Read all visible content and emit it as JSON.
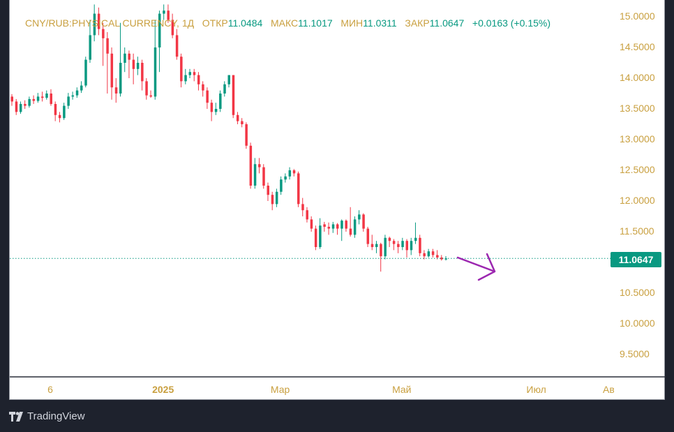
{
  "header": {
    "symbol": "CNY/RUB:PHYSICAL CURRENCY, 1Д",
    "open_label": "ОТКР",
    "open": "11.0484",
    "high_label": "МАКС",
    "high": "11.1017",
    "low_label": "МИН",
    "low": "11.0311",
    "close_label": "ЗАКР",
    "close": "11.0647",
    "change": "+0.0163 (+0.15%)"
  },
  "current_price": "11.0647",
  "branding": "TradingView",
  "colors": {
    "up": "#089981",
    "down": "#f23645",
    "axis_text": "#c9a040",
    "arrow": "#9c27b0"
  },
  "chart_data": {
    "type": "candlestick",
    "title": "CNY/RUB:PHYSICAL CURRENCY, 1Д",
    "ylim": [
      9.2,
      15.25
    ],
    "y_ticks": [
      "15.0000",
      "14.5000",
      "14.0000",
      "13.5000",
      "13.0000",
      "12.5000",
      "12.0000",
      "11.5000",
      "11.0000",
      "10.5000",
      "10.0000",
      "9.5000"
    ],
    "y_tick_values": [
      15,
      14.5,
      14,
      13.5,
      13,
      12.5,
      12,
      11.5,
      11,
      10.5,
      10,
      9.5
    ],
    "x_ticks": [
      "6",
      "2025",
      "Мар",
      "Май",
      "Июл",
      "Ав"
    ],
    "x_tick_index": [
      9,
      35,
      62,
      90,
      121,
      138
    ],
    "x_tick_bold": [
      false,
      true,
      false,
      false,
      false,
      false
    ],
    "last_price": 11.0647,
    "annotation": "arrow pointing right-down after last candle",
    "candles": [
      [
        13.7,
        13.74,
        13.55,
        13.62
      ],
      [
        13.62,
        13.66,
        13.4,
        13.45
      ],
      [
        13.45,
        13.62,
        13.42,
        13.58
      ],
      [
        13.58,
        13.64,
        13.5,
        13.55
      ],
      [
        13.55,
        13.7,
        13.52,
        13.66
      ],
      [
        13.66,
        13.72,
        13.58,
        13.63
      ],
      [
        13.63,
        13.76,
        13.6,
        13.7
      ],
      [
        13.7,
        13.78,
        13.62,
        13.68
      ],
      [
        13.68,
        13.8,
        13.65,
        13.75
      ],
      [
        13.75,
        13.82,
        13.55,
        13.58
      ],
      [
        13.58,
        13.62,
        13.3,
        13.4
      ],
      [
        13.4,
        13.45,
        13.28,
        13.35
      ],
      [
        13.35,
        13.6,
        13.32,
        13.55
      ],
      [
        13.55,
        13.76,
        13.5,
        13.7
      ],
      [
        13.7,
        13.78,
        13.65,
        13.72
      ],
      [
        13.72,
        13.85,
        13.68,
        13.8
      ],
      [
        13.8,
        13.95,
        13.76,
        13.88
      ],
      [
        13.88,
        14.35,
        13.85,
        14.3
      ],
      [
        14.3,
        14.95,
        14.25,
        14.7
      ],
      [
        14.7,
        15.2,
        14.6,
        15.05
      ],
      [
        15.05,
        15.15,
        14.7,
        14.8
      ],
      [
        14.8,
        14.9,
        14.2,
        14.65
      ],
      [
        14.65,
        14.75,
        13.75,
        14.4
      ],
      [
        14.4,
        14.5,
        13.65,
        13.85
      ],
      [
        13.85,
        14.0,
        13.6,
        13.75
      ],
      [
        13.75,
        14.9,
        13.7,
        14.25
      ],
      [
        14.25,
        14.5,
        14.1,
        14.4
      ],
      [
        14.4,
        14.45,
        14.0,
        14.3
      ],
      [
        14.3,
        14.4,
        13.9,
        14.15
      ],
      [
        14.15,
        14.35,
        14.05,
        14.25
      ],
      [
        14.25,
        14.3,
        13.8,
        13.95
      ],
      [
        13.95,
        14.0,
        13.65,
        13.72
      ],
      [
        13.72,
        13.8,
        13.68,
        13.7
      ],
      [
        13.7,
        14.95,
        13.65,
        14.5
      ],
      [
        14.5,
        15.1,
        14.1,
        15.05
      ],
      [
        15.05,
        15.2,
        14.95,
        15.1
      ],
      [
        15.1,
        15.2,
        14.9,
        14.95
      ],
      [
        14.95,
        15.05,
        14.65,
        14.7
      ],
      [
        14.7,
        14.8,
        14.3,
        14.35
      ],
      [
        14.35,
        14.4,
        13.85,
        13.95
      ],
      [
        13.95,
        14.15,
        13.9,
        14.05
      ],
      [
        14.05,
        14.15,
        14.0,
        14.1
      ],
      [
        14.1,
        14.15,
        13.95,
        14.05
      ],
      [
        14.05,
        14.1,
        13.8,
        13.9
      ],
      [
        13.9,
        13.95,
        13.7,
        13.8
      ],
      [
        13.8,
        13.85,
        13.5,
        13.6
      ],
      [
        13.6,
        13.65,
        13.3,
        13.45
      ],
      [
        13.45,
        13.6,
        13.4,
        13.5
      ],
      [
        13.5,
        13.8,
        13.45,
        13.75
      ],
      [
        13.75,
        13.95,
        13.7,
        13.9
      ],
      [
        13.9,
        14.05,
        13.85,
        14.05
      ],
      [
        14.05,
        14.05,
        13.35,
        13.4
      ],
      [
        13.4,
        13.45,
        13.25,
        13.3
      ],
      [
        13.3,
        13.35,
        13.2,
        13.25
      ],
      [
        13.25,
        13.28,
        12.85,
        12.9
      ],
      [
        12.9,
        12.95,
        12.2,
        12.25
      ],
      [
        12.25,
        12.7,
        12.2,
        12.6
      ],
      [
        12.6,
        12.7,
        12.45,
        12.55
      ],
      [
        12.55,
        12.6,
        12.2,
        12.25
      ],
      [
        12.25,
        12.3,
        12.0,
        12.1
      ],
      [
        12.1,
        12.15,
        11.85,
        11.95
      ],
      [
        11.95,
        12.2,
        11.9,
        12.15
      ],
      [
        12.15,
        12.4,
        12.1,
        12.35
      ],
      [
        12.35,
        12.45,
        12.3,
        12.4
      ],
      [
        12.4,
        12.55,
        12.35,
        12.5
      ],
      [
        12.5,
        12.52,
        12.4,
        12.45
      ],
      [
        12.45,
        12.48,
        11.9,
        11.95
      ],
      [
        11.95,
        12.05,
        11.75,
        11.85
      ],
      [
        11.85,
        11.9,
        11.65,
        11.7
      ],
      [
        11.7,
        11.75,
        11.5,
        11.55
      ],
      [
        11.55,
        11.6,
        11.2,
        11.25
      ],
      [
        11.25,
        11.72,
        11.22,
        11.6
      ],
      [
        11.62,
        11.66,
        11.5,
        11.58
      ],
      [
        11.58,
        11.65,
        11.45,
        11.55
      ],
      [
        11.55,
        11.66,
        11.48,
        11.62
      ],
      [
        11.62,
        11.64,
        11.45,
        11.55
      ],
      [
        11.55,
        11.7,
        11.35,
        11.68
      ],
      [
        11.68,
        11.7,
        11.5,
        11.55
      ],
      [
        11.55,
        11.9,
        11.42,
        11.45
      ],
      [
        11.45,
        11.75,
        11.4,
        11.7
      ],
      [
        11.7,
        11.85,
        11.62,
        11.78
      ],
      [
        11.78,
        11.8,
        11.5,
        11.55
      ],
      [
        11.55,
        11.58,
        11.25,
        11.3
      ],
      [
        11.3,
        11.45,
        11.2,
        11.25
      ],
      [
        11.25,
        11.35,
        11.15,
        11.3
      ],
      [
        11.3,
        11.32,
        10.85,
        11.1
      ],
      [
        11.1,
        11.45,
        11.05,
        11.4
      ],
      [
        11.4,
        11.42,
        11.25,
        11.35
      ],
      [
        11.35,
        11.38,
        11.2,
        11.3
      ],
      [
        11.3,
        11.35,
        11.15,
        11.25
      ],
      [
        11.25,
        11.4,
        11.2,
        11.35
      ],
      [
        11.35,
        11.38,
        11.08,
        11.2
      ],
      [
        11.2,
        11.4,
        11.12,
        11.35
      ],
      [
        11.35,
        11.65,
        11.3,
        11.4
      ],
      [
        11.4,
        11.45,
        11.1,
        11.15
      ],
      [
        11.15,
        11.2,
        11.05,
        11.1
      ],
      [
        11.1,
        11.22,
        11.08,
        11.18
      ],
      [
        11.18,
        11.22,
        11.08,
        11.12
      ],
      [
        11.12,
        11.2,
        11.05,
        11.08
      ],
      [
        11.08,
        11.12,
        11.03,
        11.05
      ],
      [
        11.0484,
        11.1017,
        11.0311,
        11.0647
      ]
    ]
  }
}
